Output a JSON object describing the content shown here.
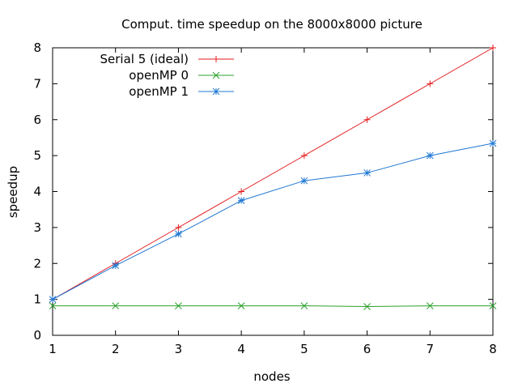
{
  "chart_data": {
    "type": "line",
    "title": "Comput. time speedup on the 8000x8000 picture",
    "xlabel": "nodes",
    "ylabel": "speedup",
    "xlim": [
      1,
      8
    ],
    "ylim": [
      0,
      8
    ],
    "x_ticks": [
      1,
      2,
      3,
      4,
      5,
      6,
      7,
      8
    ],
    "y_ticks": [
      0,
      1,
      2,
      3,
      4,
      5,
      6,
      7,
      8
    ],
    "grid": false,
    "legend_position": "top-left",
    "x": [
      1,
      2,
      3,
      4,
      5,
      6,
      7,
      8
    ],
    "series": [
      {
        "name": "Serial 5 (ideal)",
        "values": [
          1,
          2,
          3,
          4,
          5,
          6,
          7,
          8
        ],
        "color": "#e41a1c",
        "marker": "plus"
      },
      {
        "name": "openMP 0",
        "values": [
          0.82,
          0.82,
          0.82,
          0.82,
          0.82,
          0.8,
          0.82,
          0.82
        ],
        "color": "#2ca02c",
        "marker": "cross"
      },
      {
        "name": "openMP 1",
        "values": [
          1,
          1.94,
          2.82,
          3.75,
          4.3,
          4.52,
          5.0,
          5.34
        ],
        "color": "#1f77d4",
        "marker": "star"
      }
    ]
  }
}
